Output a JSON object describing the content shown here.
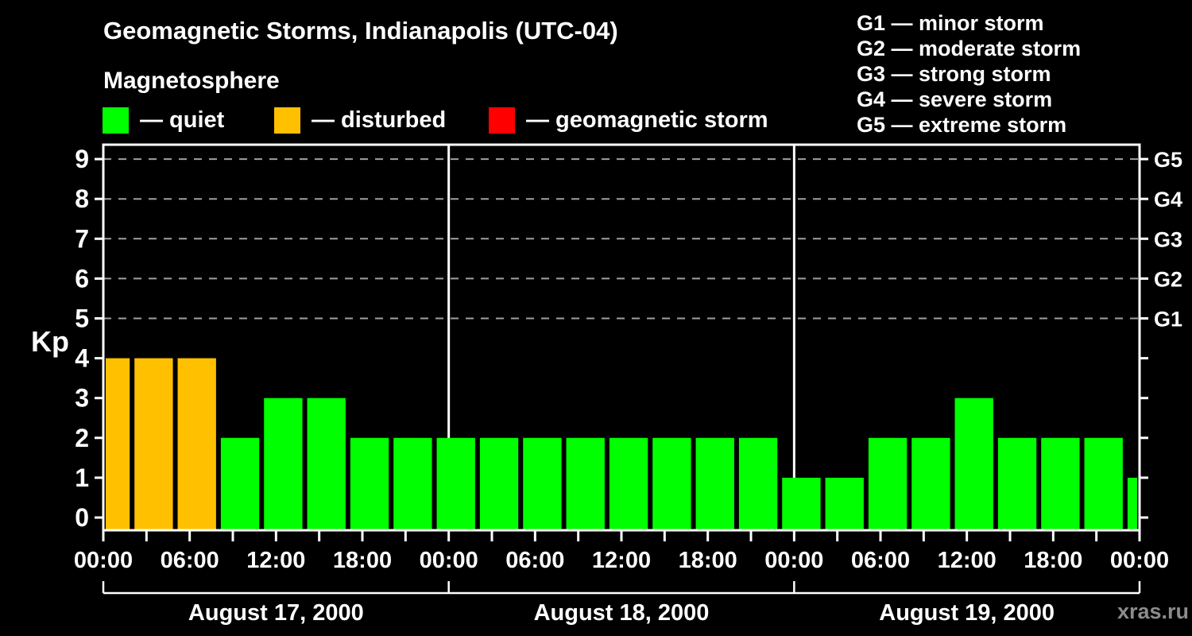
{
  "header": {
    "title": "Geomagnetic Storms, Indianapolis (UTC-04)",
    "subtitle": "Magnetosphere",
    "legend": [
      {
        "key": "quiet",
        "label": "— quiet"
      },
      {
        "key": "disturbed",
        "label": "— disturbed"
      },
      {
        "key": "storm",
        "label": "— geomagnetic storm"
      }
    ],
    "g_scale_legend": [
      "G1 — minor storm",
      "G2 — moderate storm",
      "G3 — strong storm",
      "G4 — severe storm",
      "G5 — extreme storm"
    ]
  },
  "watermark": "xras.ru",
  "colors": {
    "quiet": "#00ff00",
    "disturbed": "#ffc000",
    "storm": "#ff0000",
    "background": "#000000",
    "axis": "#ffffff",
    "grid": "#a0a0a0",
    "watermark": "#8c8c8c"
  },
  "chart_data": {
    "type": "bar",
    "title": "Geomagnetic Storms, Indianapolis (UTC-04)",
    "xlabel": "",
    "ylabel": "Kp",
    "ylim": [
      0,
      9
    ],
    "y_ticks": [
      0,
      1,
      2,
      3,
      4,
      5,
      6,
      7,
      8,
      9
    ],
    "grid_levels_kp": [
      5,
      6,
      7,
      8,
      9
    ],
    "grid_style": "dashed",
    "legend_position": "top",
    "right_axis_labels": [
      {
        "label": "G5",
        "kp": 9
      },
      {
        "label": "G4",
        "kp": 8
      },
      {
        "label": "G3",
        "kp": 7
      },
      {
        "label": "G2",
        "kp": 6
      },
      {
        "label": "G1",
        "kp": 5
      }
    ],
    "x_total_hours": 72,
    "x_minor_tick_hours": 3,
    "x_major_tick_hours": 6,
    "x_tick_label_cycle": [
      "00:00",
      "06:00",
      "12:00",
      "18:00"
    ],
    "days": [
      "August 17, 2000",
      "August 18, 2000",
      "August 19, 2000"
    ],
    "bars": [
      {
        "start_h": 0,
        "end_h": 2,
        "kp": 4,
        "state": "disturbed"
      },
      {
        "start_h": 2,
        "end_h": 5,
        "kp": 4,
        "state": "disturbed"
      },
      {
        "start_h": 5,
        "end_h": 8,
        "kp": 4,
        "state": "disturbed"
      },
      {
        "start_h": 8,
        "end_h": 11,
        "kp": 2,
        "state": "quiet"
      },
      {
        "start_h": 11,
        "end_h": 14,
        "kp": 3,
        "state": "quiet"
      },
      {
        "start_h": 14,
        "end_h": 17,
        "kp": 3,
        "state": "quiet"
      },
      {
        "start_h": 17,
        "end_h": 20,
        "kp": 2,
        "state": "quiet"
      },
      {
        "start_h": 20,
        "end_h": 23,
        "kp": 2,
        "state": "quiet"
      },
      {
        "start_h": 23,
        "end_h": 26,
        "kp": 2,
        "state": "quiet"
      },
      {
        "start_h": 26,
        "end_h": 29,
        "kp": 2,
        "state": "quiet"
      },
      {
        "start_h": 29,
        "end_h": 32,
        "kp": 2,
        "state": "quiet"
      },
      {
        "start_h": 32,
        "end_h": 35,
        "kp": 2,
        "state": "quiet"
      },
      {
        "start_h": 35,
        "end_h": 38,
        "kp": 2,
        "state": "quiet"
      },
      {
        "start_h": 38,
        "end_h": 41,
        "kp": 2,
        "state": "quiet"
      },
      {
        "start_h": 41,
        "end_h": 44,
        "kp": 2,
        "state": "quiet"
      },
      {
        "start_h": 44,
        "end_h": 47,
        "kp": 2,
        "state": "quiet"
      },
      {
        "start_h": 47,
        "end_h": 50,
        "kp": 1,
        "state": "quiet"
      },
      {
        "start_h": 50,
        "end_h": 53,
        "kp": 1,
        "state": "quiet"
      },
      {
        "start_h": 53,
        "end_h": 56,
        "kp": 2,
        "state": "quiet"
      },
      {
        "start_h": 56,
        "end_h": 59,
        "kp": 2,
        "state": "quiet"
      },
      {
        "start_h": 59,
        "end_h": 62,
        "kp": 3,
        "state": "quiet"
      },
      {
        "start_h": 62,
        "end_h": 65,
        "kp": 2,
        "state": "quiet"
      },
      {
        "start_h": 65,
        "end_h": 68,
        "kp": 2,
        "state": "quiet"
      },
      {
        "start_h": 68,
        "end_h": 71,
        "kp": 2,
        "state": "quiet"
      },
      {
        "start_h": 71,
        "end_h": 72,
        "kp": 1,
        "state": "quiet"
      }
    ]
  }
}
